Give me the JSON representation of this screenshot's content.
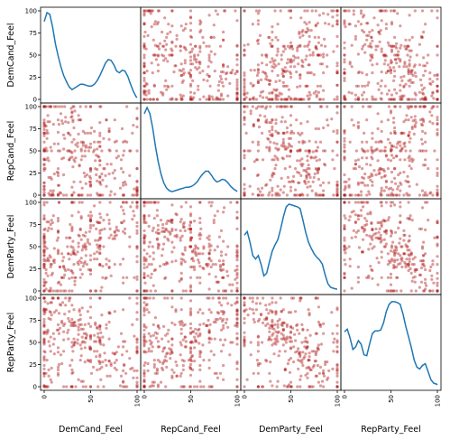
{
  "chart_data": {
    "type": "scatter",
    "variables": [
      "DemCand_Feel",
      "RepCand_Feel",
      "DemParty_Feel",
      "RepParty_Feel"
    ],
    "axis_range": [
      0,
      100
    ],
    "ticks": [
      0,
      25,
      50,
      75,
      100
    ],
    "x_tick_labels": [
      "0",
      "50",
      "100"
    ],
    "y_tick_labels": [
      "0",
      "25",
      "50",
      "75",
      "100"
    ],
    "grid": false,
    "diagonal": "kde",
    "colors": {
      "points": "#b22222",
      "kde": "#1f77b4",
      "frame": "#000000"
    },
    "kde_curves": {
      "DemCand_Feel": {
        "x": [
          0,
          3,
          6,
          9,
          12,
          15,
          18,
          21,
          24,
          27,
          30,
          33,
          36,
          39,
          42,
          45,
          48,
          51,
          54,
          57,
          60,
          63,
          66,
          69,
          72,
          75,
          78,
          81,
          84,
          87,
          90,
          93,
          96,
          99,
          100
        ],
        "y": [
          88,
          98,
          96,
          82,
          63,
          49,
          37,
          27,
          20,
          14,
          11,
          13,
          15,
          17,
          17,
          16,
          15,
          15,
          17,
          21,
          27,
          34,
          41,
          45,
          44,
          39,
          32,
          30,
          33,
          32,
          26,
          17,
          9,
          3,
          2
        ]
      },
      "RepCand_Feel": {
        "x": [
          0,
          3,
          6,
          9,
          12,
          15,
          18,
          21,
          24,
          27,
          30,
          33,
          36,
          39,
          42,
          45,
          48,
          51,
          54,
          57,
          60,
          63,
          66,
          69,
          72,
          75,
          78,
          81,
          84,
          87,
          90,
          93,
          96,
          99,
          100
        ],
        "y": [
          92,
          99,
          92,
          76,
          55,
          38,
          24,
          14,
          8,
          5,
          4,
          5,
          6,
          7,
          8,
          9,
          9,
          10,
          12,
          15,
          20,
          24,
          27,
          27,
          23,
          18,
          15,
          16,
          18,
          17,
          14,
          10,
          7,
          5,
          4
        ]
      },
      "DemParty_Feel": {
        "x": [
          0,
          3,
          6,
          9,
          12,
          15,
          18,
          21,
          24,
          27,
          30,
          33,
          36,
          39,
          42,
          45,
          48,
          51,
          54,
          57,
          60,
          63,
          66,
          69,
          72,
          75,
          78,
          81,
          84,
          87,
          90,
          93,
          96,
          99,
          100
        ],
        "y": [
          63,
          67,
          55,
          40,
          36,
          40,
          30,
          17,
          20,
          33,
          45,
          52,
          58,
          70,
          84,
          95,
          98,
          97,
          96,
          95,
          93,
          80,
          66,
          55,
          48,
          42,
          38,
          35,
          30,
          18,
          8,
          4,
          3,
          2,
          2
        ]
      },
      "RepParty_Feel": {
        "x": [
          0,
          3,
          6,
          9,
          12,
          15,
          18,
          21,
          24,
          27,
          30,
          33,
          36,
          39,
          42,
          45,
          48,
          51,
          54,
          57,
          60,
          63,
          66,
          69,
          72,
          75,
          78,
          81,
          84,
          87,
          90,
          93,
          96,
          99,
          100
        ],
        "y": [
          62,
          65,
          55,
          42,
          45,
          52,
          48,
          36,
          35,
          48,
          60,
          63,
          63,
          64,
          72,
          85,
          93,
          96,
          96,
          95,
          93,
          82,
          68,
          56,
          44,
          30,
          22,
          20,
          24,
          26,
          17,
          8,
          4,
          3,
          2
        ]
      }
    },
    "scatter_summary": "Integer 0-100 feeling-thermometer responses for each pair of variables; points concentrate on round values (0, 15, 30, 40, 50, 60, 70, 85, 100)"
  }
}
